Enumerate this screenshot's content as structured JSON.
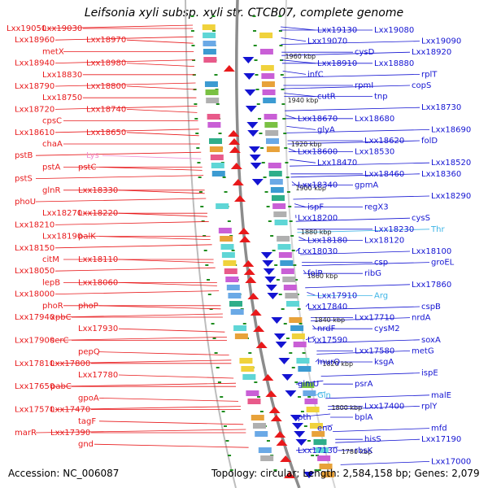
{
  "title": "Leifsonia xyli subsp. xyli str. CTCB07, complete genome",
  "footer": {
    "accession": "Accession: NC_006087",
    "topology": "Topology: circular; Length: 2,584,158 bp; Genes: 2,079"
  },
  "colors": {
    "left_genes": "#e8191b",
    "right_genes": "#1414d2",
    "pale_pink": "#f08cd0",
    "light_blue": "#3cb4e6",
    "backbone": "#8c8c8c",
    "track_dots": "#1e8c1e"
  },
  "kbp_labels": [
    "1960 kbp",
    "1940 kbp",
    "1920 kbp",
    "1900 kbp",
    "1880 kbp",
    "1860 kbp",
    "1840 kbp",
    "1820 kbp",
    "1800 kbp",
    "1780 kbp"
  ],
  "left_labels": [
    "Lxx19050",
    "Lxx19030",
    "Lxx18970",
    "Lxx18960",
    "metX",
    "Lxx18980",
    "Lxx18940",
    "Lxx18830",
    "Lxx18800",
    "Lxx18790",
    "Lxx18750",
    "Lxx18740",
    "Lxx18720",
    "cpsC",
    "Lxx18650",
    "Lxx18610",
    "chaA",
    "Lys",
    "pstB",
    "pstA",
    "pstC",
    "pstS",
    "glnR",
    "Lxx18330",
    "phoU",
    "Lxx18270",
    "Lxx18220",
    "Lxx18210",
    "Lxx18190",
    "palK",
    "Lxx18150",
    "citM",
    "Lxx18110",
    "Lxx18050",
    "lepB",
    "Lxx18060",
    "Lxx18000",
    "phoR",
    "phoP",
    "Lxx17940",
    "xpbC",
    "Lxx17930",
    "Lxx17900",
    "serC",
    "pepQ",
    "Lxx17810",
    "Lxx17800",
    "Lxx17780",
    "Lxx17650",
    "pabC",
    "gpoA",
    "Lxx17570",
    "Lxx17470",
    "tagF",
    "marR",
    "Lxx17390",
    "gnd"
  ],
  "right_labels": [
    "Lxx19130",
    "Lxx19080",
    "Lxx19090",
    "Lxx19070",
    "cysD",
    "Lxx18920",
    "Lxx18910",
    "Lxx18880",
    "rplT",
    "infC",
    "rpmI",
    "copS",
    "cutR",
    "tnp",
    "Lxx18730",
    "Lxx18670",
    "Lxx18680",
    "Lxx18690",
    "glyA",
    "Lxx18620",
    "folD",
    "Lxx18600",
    "Lxx18530",
    "Lxx18520",
    "Lxx18470",
    "Lxx18460",
    "Lxx18360",
    "Lxx18340",
    "gpmA",
    "Lxx18290",
    "ispF",
    "regX3",
    "cysS",
    "Lxx18200",
    "Lxx18230",
    "Thr",
    "Lxx18180",
    "Lxx18120",
    "Lxx18100",
    "Lxx18030",
    "csp",
    "groEL",
    "folP",
    "ribG",
    "Lxx17860",
    "Lxx17910",
    "Arg",
    "cspB",
    "Lxx17840",
    "Lxx17710",
    "nrdA",
    "nrdF",
    "cysM2",
    "soxA",
    "Lxx17590",
    "Lxx17580",
    "metG",
    "murQ",
    "ksgA",
    "ispE",
    "glmU",
    "psrA",
    "malE",
    "Gln",
    "Lxx17400",
    "rplY",
    "pth",
    "bplA",
    "mfd",
    "eno",
    "hisS",
    "Lxx17190",
    "Lxx17130",
    "rbsK",
    "Lxx17000"
  ]
}
